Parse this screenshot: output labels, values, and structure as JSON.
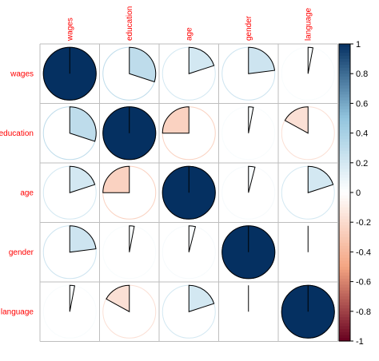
{
  "chart_data": {
    "type": "heatmap",
    "method": "pie",
    "variables": [
      "wages",
      "education",
      "age",
      "gender",
      "language"
    ],
    "matrix": [
      [
        1.0,
        0.3,
        0.2,
        0.23,
        0.03
      ],
      [
        0.3,
        1.0,
        -0.25,
        0.03,
        -0.17
      ],
      [
        0.2,
        -0.25,
        1.0,
        0.04,
        0.2
      ],
      [
        0.23,
        0.03,
        0.04,
        1.0,
        0.0
      ],
      [
        0.03,
        -0.17,
        0.2,
        0.0,
        1.0
      ]
    ],
    "colorbar": {
      "range": [
        -1,
        1
      ],
      "ticks": [
        "1",
        "0.8",
        "0.6",
        "0.4",
        "0.2",
        "0",
        "-0.2",
        "-0.4",
        "-0.6",
        "-0.8",
        "-1"
      ]
    },
    "colors": {
      "negative_strong": "#67001F",
      "negative_mid": "#F4A582",
      "zero": "#FFFFFF",
      "positive_mid": "#92C5DE",
      "positive_strong": "#053061",
      "grid": "#bebebe",
      "label": "#ff0000"
    }
  }
}
